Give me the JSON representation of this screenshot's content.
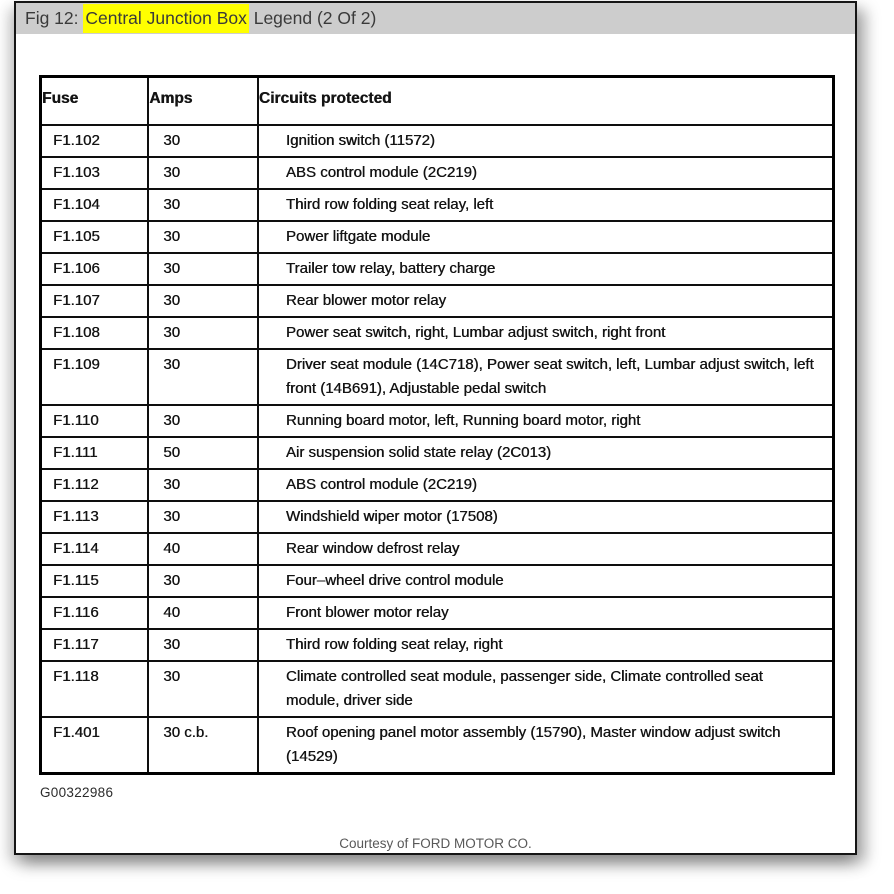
{
  "header": {
    "title_prefix": "Fig 12: ",
    "title_highlight": "Central Junction Box",
    "title_suffix": " Legend (2 Of 2)"
  },
  "colors": {
    "titlebar_bg": "#cdcdcd",
    "highlight": "#ffff00",
    "card_border": "#151515",
    "table_ink": "#141414",
    "footer_text": "#585858"
  },
  "table": {
    "columns": [
      "Fuse",
      "Amps",
      "Circuits protected"
    ],
    "rows": [
      {
        "fuse": "F1.102",
        "amps": "30",
        "circuit": "Ignition switch (11572)"
      },
      {
        "fuse": "F1.103",
        "amps": "30",
        "circuit": "ABS control module (2C219)"
      },
      {
        "fuse": "F1.104",
        "amps": "30",
        "circuit": "Third row folding seat relay, left"
      },
      {
        "fuse": "F1.105",
        "amps": "30",
        "circuit": "Power liftgate module"
      },
      {
        "fuse": "F1.106",
        "amps": "30",
        "circuit": "Trailer tow relay, battery charge"
      },
      {
        "fuse": "F1.107",
        "amps": "30",
        "circuit": "Rear blower motor relay"
      },
      {
        "fuse": "F1.108",
        "amps": "30",
        "circuit": "Power seat switch, right, Lumbar adjust switch, right front"
      },
      {
        "fuse": "F1.109",
        "amps": "30",
        "circuit": "Driver seat module (14C718), Power seat switch, left, Lumbar adjust switch, left front (14B691), Adjustable pedal switch"
      },
      {
        "fuse": "F1.110",
        "amps": "30",
        "circuit": "Running board motor, left, Running board motor, right"
      },
      {
        "fuse": "F1.111",
        "amps": "50",
        "circuit": "Air suspension solid state relay (2C013)"
      },
      {
        "fuse": "F1.112",
        "amps": "30",
        "circuit": "ABS control module (2C219)"
      },
      {
        "fuse": "F1.113",
        "amps": "30",
        "circuit": "Windshield wiper motor (17508)"
      },
      {
        "fuse": "F1.114",
        "amps": "40",
        "circuit": "Rear window defrost relay"
      },
      {
        "fuse": "F1.115",
        "amps": "30",
        "circuit": "Four–wheel drive control module"
      },
      {
        "fuse": "F1.116",
        "amps": "40",
        "circuit": "Front blower motor relay"
      },
      {
        "fuse": "F1.117",
        "amps": "30",
        "circuit": "Third row folding seat relay, right"
      },
      {
        "fuse": "F1.118",
        "amps": "30",
        "circuit": "Climate controlled seat module, passenger side, Climate controlled seat module, driver side"
      },
      {
        "fuse": "F1.401",
        "amps": "30  c.b.",
        "circuit": "Roof opening panel motor assembly (15790), Master window adjust switch (14529)"
      }
    ]
  },
  "figure_id": "G00322986",
  "footer": {
    "courtesy": "Courtesy of FORD MOTOR CO."
  }
}
